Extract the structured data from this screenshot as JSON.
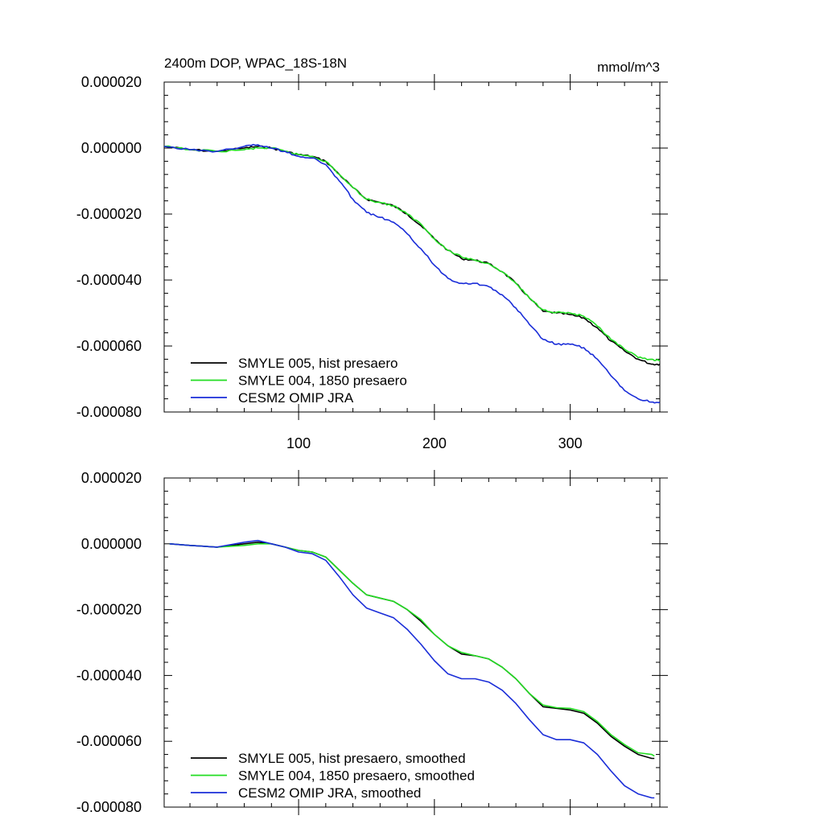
{
  "chart_data": [
    {
      "type": "line",
      "title_left": "2400m DOP, WPAC_18S-18N",
      "title_right": "mmol/m^3",
      "xlabel": "",
      "ylabel": "",
      "xlim": [
        1,
        366
      ],
      "ylim": [
        -8e-05,
        2e-05
      ],
      "x_ticks": [
        100,
        200,
        300
      ],
      "x_tick_labels": [
        "100",
        "200",
        "300"
      ],
      "y_ticks": [
        2e-05,
        0.0,
        -2e-05,
        -4e-05,
        -6e-05,
        -8e-05
      ],
      "y_tick_labels": [
        "0.000020",
        "0.000000",
        "-0.000020",
        "-0.000040",
        "-0.000060",
        "-0.000080"
      ],
      "grid": false,
      "legend_position": "bottom-left",
      "x": [
        1,
        20,
        40,
        60,
        70,
        80,
        90,
        100,
        110,
        120,
        130,
        140,
        150,
        160,
        170,
        180,
        190,
        200,
        210,
        220,
        230,
        240,
        250,
        260,
        270,
        280,
        290,
        300,
        310,
        320,
        330,
        340,
        350,
        360,
        366
      ],
      "series": [
        {
          "name": "SMYLE 005, hist presaero",
          "color": "#000000",
          "values": [
            5e-07,
            -5e-07,
            -1e-06,
            0.0,
            5e-07,
            0.0,
            -1e-06,
            -2e-06,
            -2.5e-06,
            -4e-06,
            -8e-06,
            -1.2e-05,
            -1.55e-05,
            -1.65e-05,
            -1.75e-05,
            -2e-05,
            -2.35e-05,
            -2.75e-05,
            -3.1e-05,
            -3.35e-05,
            -3.4e-05,
            -3.5e-05,
            -3.75e-05,
            -4.1e-05,
            -4.55e-05,
            -4.95e-05,
            -5e-05,
            -5.05e-05,
            -5.15e-05,
            -5.45e-05,
            -5.85e-05,
            -6.15e-05,
            -6.4e-05,
            -6.55e-05,
            -6.55e-05
          ]
        },
        {
          "name": "SMYLE 004, 1850 presaero",
          "color": "#22dd22",
          "values": [
            5e-07,
            -5e-07,
            -1e-06,
            -5e-07,
            0.0,
            0.0,
            -1e-06,
            -2e-06,
            -2.5e-06,
            -4e-06,
            -8e-06,
            -1.2e-05,
            -1.55e-05,
            -1.65e-05,
            -1.75e-05,
            -2e-05,
            -2.3e-05,
            -2.75e-05,
            -3.1e-05,
            -3.3e-05,
            -3.4e-05,
            -3.5e-05,
            -3.75e-05,
            -4.1e-05,
            -4.55e-05,
            -4.9e-05,
            -4.98e-05,
            -5e-05,
            -5.1e-05,
            -5.4e-05,
            -5.8e-05,
            -6.1e-05,
            -6.35e-05,
            -6.4e-05,
            -6.45e-05
          ]
        },
        {
          "name": "CESM2 OMIP JRA",
          "color": "#1a2dd8",
          "values": [
            5e-07,
            -5e-07,
            -1e-06,
            5e-07,
            1e-06,
            0.0,
            -1e-06,
            -2.5e-06,
            -3e-06,
            -5e-06,
            -1e-05,
            -1.55e-05,
            -1.95e-05,
            -2.1e-05,
            -2.25e-05,
            -2.6e-05,
            -3.05e-05,
            -3.55e-05,
            -3.95e-05,
            -4.1e-05,
            -4.1e-05,
            -4.2e-05,
            -4.45e-05,
            -4.85e-05,
            -5.35e-05,
            -5.8e-05,
            -5.95e-05,
            -5.95e-05,
            -6.05e-05,
            -6.4e-05,
            -6.9e-05,
            -7.35e-05,
            -7.6e-05,
            -7.7e-05,
            -7.7e-05
          ]
        }
      ]
    },
    {
      "type": "line",
      "title_left": "",
      "title_right": "",
      "xlabel": "",
      "ylabel": "",
      "xlim": [
        1,
        366
      ],
      "ylim": [
        -8e-05,
        2e-05
      ],
      "x_ticks": [
        100,
        200,
        300
      ],
      "x_tick_labels": [
        "",
        "",
        ""
      ],
      "y_ticks": [
        2e-05,
        0.0,
        -2e-05,
        -4e-05,
        -6e-05,
        -8e-05
      ],
      "y_tick_labels": [
        "0.000020",
        "0.000000",
        "-0.000020",
        "-0.000040",
        "-0.000060",
        "-0.000080"
      ],
      "grid": false,
      "legend_position": "bottom-left",
      "x": [
        5,
        20,
        40,
        60,
        70,
        80,
        90,
        100,
        110,
        120,
        130,
        140,
        150,
        160,
        170,
        180,
        190,
        200,
        210,
        220,
        230,
        240,
        250,
        260,
        270,
        280,
        290,
        300,
        310,
        320,
        330,
        340,
        350,
        360,
        362
      ],
      "series": [
        {
          "name": "SMYLE 005, hist presaero, smoothed",
          "color": "#000000",
          "values": [
            0.0,
            -5e-07,
            -1e-06,
            0.0,
            5e-07,
            0.0,
            -1e-06,
            -2e-06,
            -2.5e-06,
            -4e-06,
            -8e-06,
            -1.2e-05,
            -1.55e-05,
            -1.65e-05,
            -1.75e-05,
            -2e-05,
            -2.35e-05,
            -2.75e-05,
            -3.1e-05,
            -3.35e-05,
            -3.4e-05,
            -3.5e-05,
            -3.75e-05,
            -4.1e-05,
            -4.55e-05,
            -4.95e-05,
            -5e-05,
            -5.05e-05,
            -5.15e-05,
            -5.45e-05,
            -5.85e-05,
            -6.15e-05,
            -6.4e-05,
            -6.52e-05,
            -6.52e-05
          ]
        },
        {
          "name": "SMYLE 004, 1850 presaero, smoothed",
          "color": "#22dd22",
          "values": [
            0.0,
            -5e-07,
            -1e-06,
            -5e-07,
            0.0,
            0.0,
            -1e-06,
            -2e-06,
            -2.5e-06,
            -4e-06,
            -8e-06,
            -1.2e-05,
            -1.55e-05,
            -1.65e-05,
            -1.75e-05,
            -2e-05,
            -2.3e-05,
            -2.75e-05,
            -3.1e-05,
            -3.3e-05,
            -3.4e-05,
            -3.5e-05,
            -3.75e-05,
            -4.1e-05,
            -4.55e-05,
            -4.9e-05,
            -4.98e-05,
            -5e-05,
            -5.1e-05,
            -5.4e-05,
            -5.8e-05,
            -6.1e-05,
            -6.35e-05,
            -6.4e-05,
            -6.45e-05
          ]
        },
        {
          "name": "CESM2 OMIP JRA, smoothed",
          "color": "#1a2dd8",
          "values": [
            0.0,
            -5e-07,
            -1e-06,
            5e-07,
            1e-06,
            0.0,
            -1e-06,
            -2.5e-06,
            -3e-06,
            -5e-06,
            -1e-05,
            -1.55e-05,
            -1.95e-05,
            -2.1e-05,
            -2.25e-05,
            -2.6e-05,
            -3.05e-05,
            -3.55e-05,
            -3.95e-05,
            -4.1e-05,
            -4.1e-05,
            -4.2e-05,
            -4.45e-05,
            -4.85e-05,
            -5.35e-05,
            -5.8e-05,
            -5.95e-05,
            -5.95e-05,
            -6.05e-05,
            -6.4e-05,
            -6.9e-05,
            -7.35e-05,
            -7.6e-05,
            -7.72e-05,
            -7.72e-05
          ]
        }
      ]
    }
  ]
}
